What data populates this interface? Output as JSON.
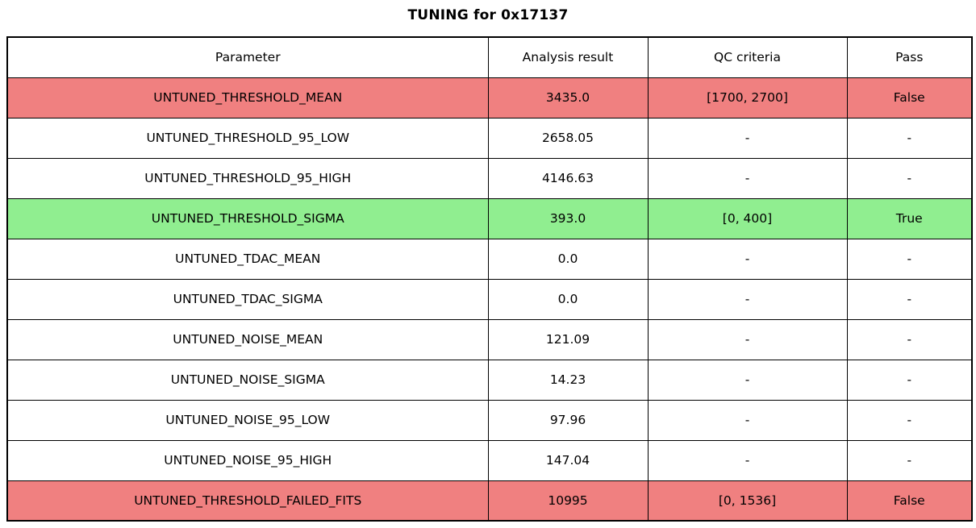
{
  "chart_data": {
    "type": "table",
    "title": "TUNING for 0x17137",
    "columns": [
      "Parameter",
      "Analysis result",
      "QC criteria",
      "Pass"
    ],
    "rows": [
      {
        "parameter": "UNTUNED_THRESHOLD_MEAN",
        "analysis_result": "3435.0",
        "qc_criteria": "[1700, 2700]",
        "pass": "False",
        "status": "fail"
      },
      {
        "parameter": "UNTUNED_THRESHOLD_95_LOW",
        "analysis_result": "2658.05",
        "qc_criteria": "-",
        "pass": "-",
        "status": "none"
      },
      {
        "parameter": "UNTUNED_THRESHOLD_95_HIGH",
        "analysis_result": "4146.63",
        "qc_criteria": "-",
        "pass": "-",
        "status": "none"
      },
      {
        "parameter": "UNTUNED_THRESHOLD_SIGMA",
        "analysis_result": "393.0",
        "qc_criteria": "[0, 400]",
        "pass": "True",
        "status": "pass"
      },
      {
        "parameter": "UNTUNED_TDAC_MEAN",
        "analysis_result": "0.0",
        "qc_criteria": "-",
        "pass": "-",
        "status": "none"
      },
      {
        "parameter": "UNTUNED_TDAC_SIGMA",
        "analysis_result": "0.0",
        "qc_criteria": "-",
        "pass": "-",
        "status": "none"
      },
      {
        "parameter": "UNTUNED_NOISE_MEAN",
        "analysis_result": "121.09",
        "qc_criteria": "-",
        "pass": "-",
        "status": "none"
      },
      {
        "parameter": "UNTUNED_NOISE_SIGMA",
        "analysis_result": "14.23",
        "qc_criteria": "-",
        "pass": "-",
        "status": "none"
      },
      {
        "parameter": "UNTUNED_NOISE_95_LOW",
        "analysis_result": "97.96",
        "qc_criteria": "-",
        "pass": "-",
        "status": "none"
      },
      {
        "parameter": "UNTUNED_NOISE_95_HIGH",
        "analysis_result": "147.04",
        "qc_criteria": "-",
        "pass": "-",
        "status": "none"
      },
      {
        "parameter": "UNTUNED_THRESHOLD_FAILED_FITS",
        "analysis_result": "10995",
        "qc_criteria": "[0, 1536]",
        "pass": "False",
        "status": "fail"
      }
    ]
  },
  "colors": {
    "fail_row": "#f08080",
    "pass_row": "#90ee90",
    "neutral_row": "#ffffff",
    "border": "#000000",
    "background": "#ffffff"
  }
}
